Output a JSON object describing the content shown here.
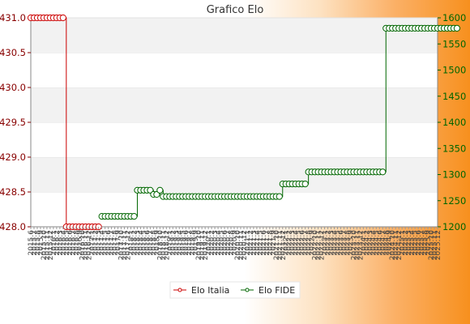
{
  "chart_data": {
    "type": "line",
    "title": "Grafico Elo",
    "y_left": {
      "ylim": [
        428.0,
        431.0
      ],
      "ticks": [
        "428.0",
        "428.5",
        "429.0",
        "429.5",
        "430.0",
        "430.5",
        "431.0"
      ],
      "color": "#cc0000"
    },
    "y_right": {
      "ylim": [
        1200,
        1600
      ],
      "ticks": [
        "1200",
        "1250",
        "1300",
        "1350",
        "1400",
        "1450",
        "1500",
        "1550",
        "1600"
      ],
      "color": "#006600"
    },
    "x_ticks": [
      "2015.6",
      "2015.7",
      "2015.8",
      "2015.9",
      "2015.10",
      "2015.11",
      "2015.12",
      "2016.1",
      "2016.2",
      "2016.3",
      "2016.4",
      "2016.5",
      "2016.6",
      "2016.7",
      "2016.8",
      "2016.9",
      "2016.10",
      "2016.11",
      "2016.12",
      "2017.1",
      "2017.2",
      "2017.3",
      "2017.4",
      "2017.5",
      "2017.6",
      "2017.7",
      "2017.8",
      "2017.9",
      "2017.10",
      "2017.11",
      "2017.12",
      "2018.1",
      "2018.2",
      "2018.3",
      "2018.4",
      "2018.5",
      "2018.6",
      "2018.7",
      "2018.8",
      "2018.9",
      "2018.10",
      "2018.11",
      "2018.12",
      "2019.1",
      "2019.2",
      "2019.3",
      "2019.4",
      "2019.5",
      "2019.6",
      "2019.7",
      "2019.8",
      "2019.9",
      "2019.10",
      "2019.11",
      "2019.12",
      "2020.1",
      "2020.2",
      "2020.3",
      "2020.4",
      "2020.5",
      "2020.6",
      "2020.7",
      "2020.8",
      "2020.9",
      "2020.10",
      "2020.11",
      "2020.12",
      "2021.1",
      "2021.2",
      "2021.3",
      "2021.4",
      "2021.5",
      "2021.6",
      "2021.7",
      "2021.8",
      "2021.9",
      "2021.10",
      "2021.11",
      "2021.12",
      "2022.1",
      "2022.2",
      "2022.3",
      "2022.4",
      "2022.5",
      "2022.6",
      "2022.7",
      "2022.8",
      "2022.9",
      "2022.10",
      "2022.11",
      "2022.12",
      "2023.1",
      "2023.2",
      "2023.3",
      "2023.4",
      "2023.5",
      "2023.6",
      "2023.7",
      "2023.8",
      "2023.9",
      "2023.10",
      "2023.11",
      "2023.12",
      "2024.1",
      "2024.2",
      "2024.3",
      "2024.4",
      "2024.5",
      "2024.6",
      "2024.7",
      "2024.8",
      "2024.9",
      "2024.10",
      "2024.11",
      "2024.12",
      "2025.1",
      "2025.2",
      "2025.3",
      "2025.4",
      "2025.5",
      "2025.6",
      "2025.7",
      "2025.8",
      "2025.9",
      "2025.10",
      "2025.11",
      "2025.12"
    ],
    "series": [
      {
        "name": "Elo Italia",
        "axis": "left",
        "color": "#cc0000",
        "values": [
          431.0,
          431.0,
          431.0,
          431.0,
          431.0,
          431.0,
          431.0,
          431.0,
          431.0,
          431.0,
          431.0,
          428.0,
          428.0,
          428.0,
          428.0,
          428.0,
          428.0,
          428.0,
          428.0,
          428.0,
          428.0,
          428.0
        ]
      },
      {
        "name": "Elo FIDE",
        "axis": "right",
        "color": "#006600",
        "values": [
          null,
          null,
          null,
          null,
          null,
          null,
          null,
          null,
          null,
          null,
          null,
          null,
          null,
          null,
          null,
          null,
          null,
          null,
          null,
          null,
          null,
          null,
          1220,
          1220,
          1220,
          1220,
          1220,
          1220,
          1220,
          1220,
          1220,
          1220,
          1220,
          1270,
          1270,
          1270,
          1270,
          1270,
          1262,
          1262,
          1270,
          1258,
          1258,
          1258,
          1258,
          1258,
          1258,
          1258,
          1258,
          1258,
          1258,
          1258,
          1258,
          1258,
          1258,
          1258,
          1258,
          1258,
          1258,
          1258,
          1258,
          1258,
          1258,
          1258,
          1258,
          1258,
          1258,
          1258,
          1258,
          1258,
          1258,
          1258,
          1258,
          1258,
          1258,
          1258,
          1258,
          1258,
          1282,
          1282,
          1282,
          1282,
          1282,
          1282,
          1282,
          1282,
          1305,
          1305,
          1305,
          1305,
          1305,
          1305,
          1305,
          1305,
          1305,
          1305,
          1305,
          1305,
          1305,
          1305,
          1305,
          1305,
          1305,
          1305,
          1305,
          1305,
          1305,
          1305,
          1305,
          1305,
          1580,
          1580,
          1580,
          1580,
          1580,
          1580,
          1580,
          1580,
          1580,
          1580,
          1580,
          1580,
          1580,
          1580,
          1580,
          1580,
          1580,
          1580,
          1580,
          1580,
          1580,
          1580,
          1580
        ]
      }
    ],
    "grid": true,
    "legend": "bottom"
  }
}
